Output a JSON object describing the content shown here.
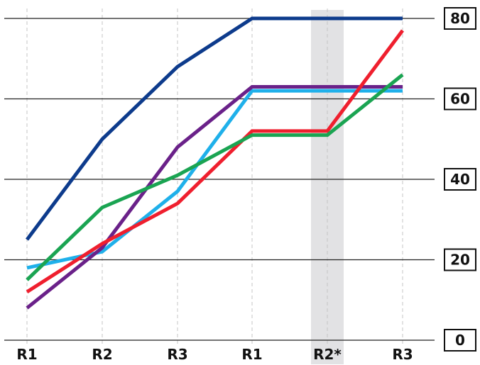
{
  "chart_data": {
    "type": "line",
    "categories": [
      "R1",
      "R2",
      "R3",
      "R1",
      "R2*",
      "R3"
    ],
    "highlight_category_index": 4,
    "highlight_color": "#e2e2e4",
    "y_ticks": [
      "0",
      "20",
      "40",
      "60",
      "80"
    ],
    "ylim": [
      0,
      80
    ],
    "y_axis_position": "right",
    "grid": {
      "horizontal": true,
      "vertical_dashed": true
    },
    "series": [
      {
        "color": "#0d3b8c",
        "values": [
          25,
          50,
          68,
          80,
          80,
          80
        ]
      },
      {
        "color": "#1fb0ea",
        "values": [
          18,
          22,
          37,
          62,
          62,
          62
        ]
      },
      {
        "color": "#6a2189",
        "values": [
          8,
          23,
          48,
          63,
          63,
          63
        ]
      },
      {
        "color": "#ef1f2e",
        "values": [
          12,
          24,
          34,
          52,
          52,
          77
        ]
      },
      {
        "color": "#1aa452",
        "values": [
          15,
          33,
          41,
          51,
          51,
          66
        ]
      }
    ]
  }
}
